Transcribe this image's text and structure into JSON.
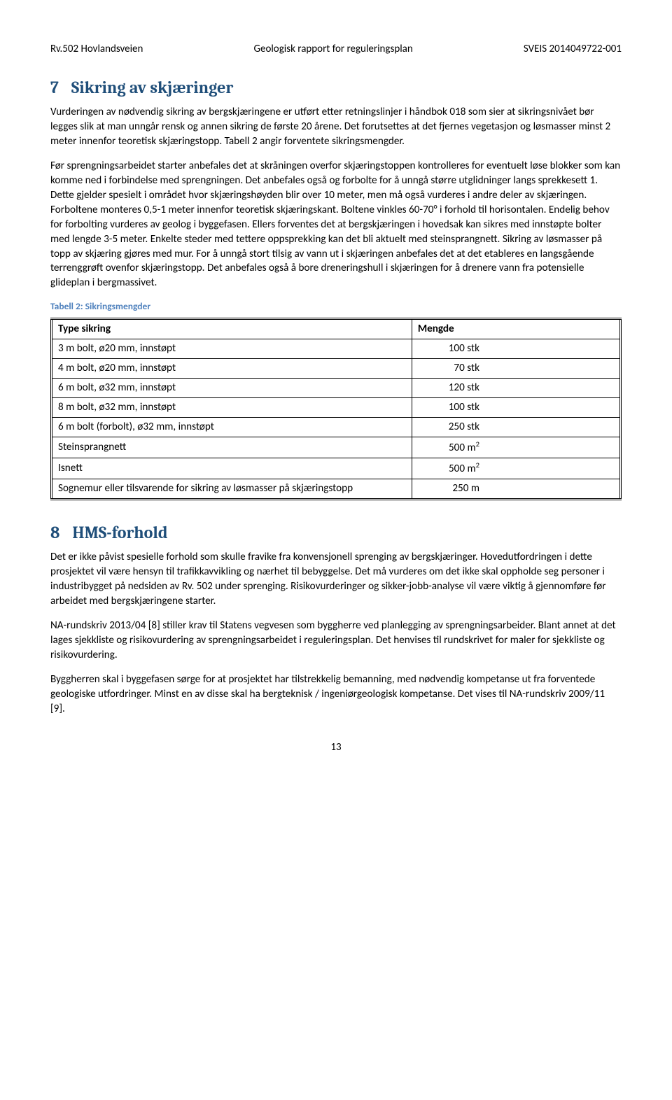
{
  "header": {
    "left": "Rv.502 Hovlandsveien",
    "center": "Geologisk rapport for reguleringsplan",
    "right": "SVEIS 2014049722-001"
  },
  "section7": {
    "num": "7",
    "title": "Sikring av skjæringer",
    "para1": "Vurderingen av nødvendig sikring av bergskjæringene er utført etter retningslinjer i håndbok 018 som sier at sikringsnivået bør legges slik at man unngår rensk og annen sikring de første 20 årene. Det forutsettes at det fjernes vegetasjon og løsmasser minst 2 meter innenfor teoretisk skjæringstopp. Tabell 2 angir forventete sikringsmengder.",
    "para2": "Før sprengningsarbeidet starter anbefales det at skråningen overfor skjæringstoppen kontrolleres for eventuelt løse blokker som kan komme ned i forbindelse med sprengningen. Det anbefales også og forbolte for å unngå større utglidninger langs sprekkesett 1. Dette gjelder spesielt i området hvor skjæringshøyden blir over 10 meter, men må også vurderes i andre deler av skjæringen. Forboltene monteres 0,5-1 meter innenfor teoretisk skjæringskant. Boltene vinkles 60-70° i forhold til horisontalen. Endelig behov for forbolting vurderes av geolog i byggefasen. Ellers forventes det at bergskjæringen i hovedsak kan sikres med innstøpte bolter med lengde 3-5 meter. Enkelte steder med tettere oppsprekking kan det bli aktuelt med steinsprangnett. Sikring av løsmasser på topp av skjæring gjøres med mur. For å unngå stort tilsig av vann ut i skjæringen anbefales det at det etableres en langsgående terrenggrøft ovenfor skjæringstopp. Det anbefales også å bore dreneringshull i skjæringen for å drenere vann fra potensielle glideplan i bergmassivet."
  },
  "table2": {
    "caption": "Tabell 2: Sikringsmengder",
    "header_type": "Type sikring",
    "header_amount": "Mengde",
    "rows": [
      {
        "type": "3 m bolt, ø20 mm, innstøpt",
        "amount": "100 stk"
      },
      {
        "type": "4 m bolt, ø20 mm, innstøpt",
        "amount": "70 stk"
      },
      {
        "type": "6 m bolt, ø32 mm, innstøpt",
        "amount": "120 stk"
      },
      {
        "type": "8 m bolt, ø32 mm, innstøpt",
        "amount": "100 stk"
      },
      {
        "type": "6 m bolt (forbolt), ø32 mm, innstøpt",
        "amount": "250 stk"
      },
      {
        "type": "Steinsprangnett",
        "amount": "500 m²"
      },
      {
        "type": "Isnett",
        "amount": "500 m²"
      },
      {
        "type": "Sognemur eller tilsvarende for sikring av løsmasser på skjæringstopp",
        "amount": "250 m"
      }
    ]
  },
  "section8": {
    "num": "8",
    "title": "HMS-forhold",
    "para1": "Det er ikke påvist spesielle forhold som skulle fravike fra konvensjonell sprenging av bergskjæringer. Hovedutfordringen i dette prosjektet vil være hensyn til trafikkavvikling og nærhet til bebyggelse. Det må vurderes om det ikke skal oppholde seg personer i industribygget på nedsiden av Rv. 502 under sprenging. Risikovurderinger og sikker-jobb-analyse vil være viktig å gjennomføre før arbeidet med bergskjæringene starter.",
    "para2": "NA-rundskriv 2013/04 [8] stiller krav til Statens vegvesen som byggherre ved planlegging av sprengningsarbeider. Blant annet at det lages sjekkliste og risikovurdering av sprengningsarbeidet i reguleringsplan. Det henvises til rundskrivet for maler for sjekkliste og risikovurdering.",
    "para3": "Byggherren skal i byggefasen sørge for at prosjektet har tilstrekkelig bemanning, med nødvendig kompetanse ut fra forventede geologiske utfordringer. Minst en av disse skal ha bergteknisk / ingeniørgeologisk kompetanse. Det vises til NA-rundskriv 2009/11 [9]."
  },
  "page_number": "13"
}
